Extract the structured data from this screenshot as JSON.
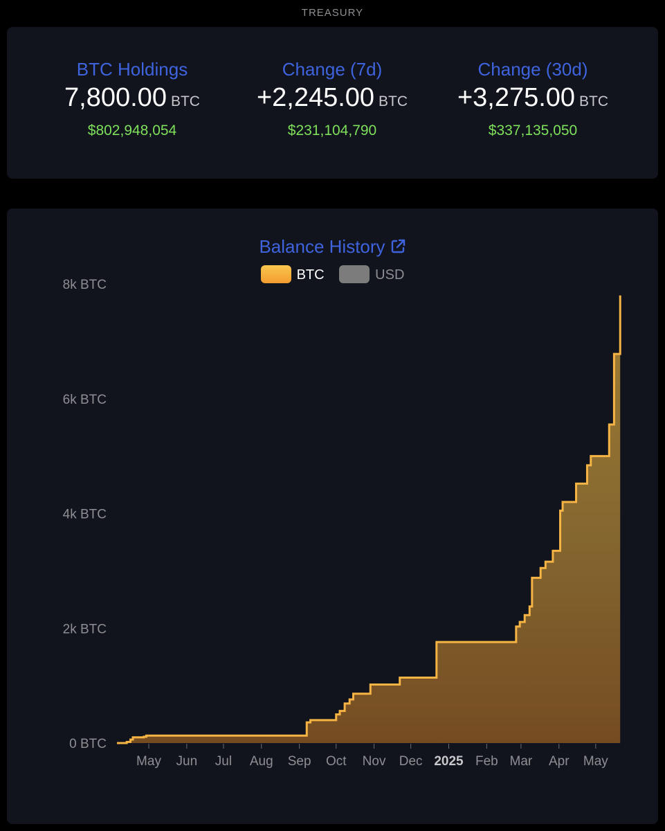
{
  "header": {
    "title": "TREASURY"
  },
  "stats": [
    {
      "title": "BTC Holdings",
      "value": "7,800.00",
      "unit": "BTC",
      "usd": "$802,948,054"
    },
    {
      "title": "Change (7d)",
      "value": "+2,245.00",
      "unit": "BTC",
      "usd": "$231,104,790"
    },
    {
      "title": "Change (30d)",
      "value": "+3,275.00",
      "unit": "BTC",
      "usd": "$337,135,050"
    }
  ],
  "chart": {
    "title": "Balance History",
    "link_icon": "external-link-icon",
    "legend": [
      {
        "label": "BTC",
        "color": "#f6b445",
        "active": true
      },
      {
        "label": "USD",
        "color": "#7c7c7c",
        "active": false
      }
    ]
  },
  "chart_data": {
    "type": "area",
    "title": "Balance History",
    "xlabel": "",
    "ylabel": "",
    "y_unit": "BTC",
    "ylim": [
      0,
      8000
    ],
    "y_ticks": [
      {
        "value": 0,
        "label": "0 BTC"
      },
      {
        "value": 2000,
        "label": "2k BTC"
      },
      {
        "value": 4000,
        "label": "4k BTC"
      },
      {
        "value": 6000,
        "label": "6k BTC"
      },
      {
        "value": 8000,
        "label": "8k BTC"
      }
    ],
    "x_range": [
      "2024-04-05",
      "2025-05-22"
    ],
    "x_ticks": [
      {
        "date": "2024-05-01",
        "label": "May",
        "bold": false
      },
      {
        "date": "2024-06-01",
        "label": "Jun",
        "bold": false
      },
      {
        "date": "2024-07-01",
        "label": "Jul",
        "bold": false
      },
      {
        "date": "2024-08-01",
        "label": "Aug",
        "bold": false
      },
      {
        "date": "2024-09-01",
        "label": "Sep",
        "bold": false
      },
      {
        "date": "2024-10-01",
        "label": "Oct",
        "bold": false
      },
      {
        "date": "2024-11-01",
        "label": "Nov",
        "bold": false
      },
      {
        "date": "2024-12-01",
        "label": "Dec",
        "bold": false
      },
      {
        "date": "2025-01-01",
        "label": "2025",
        "bold": true
      },
      {
        "date": "2025-02-01",
        "label": "Feb",
        "bold": false
      },
      {
        "date": "2025-03-01",
        "label": "Mar",
        "bold": false
      },
      {
        "date": "2025-04-01",
        "label": "Apr",
        "bold": false
      },
      {
        "date": "2025-05-01",
        "label": "May",
        "bold": false
      }
    ],
    "grid": false,
    "legend_position": "top-center",
    "series": [
      {
        "name": "BTC",
        "color": "#f6b445",
        "step": true,
        "points": [
          {
            "x": "2024-04-05",
            "y": 0
          },
          {
            "x": "2024-04-13",
            "y": 20
          },
          {
            "x": "2024-04-16",
            "y": 60
          },
          {
            "x": "2024-04-18",
            "y": 100
          },
          {
            "x": "2024-04-27",
            "y": 110
          },
          {
            "x": "2024-04-29",
            "y": 130
          },
          {
            "x": "2024-09-07",
            "y": 360
          },
          {
            "x": "2024-09-10",
            "y": 400
          },
          {
            "x": "2024-10-01",
            "y": 500
          },
          {
            "x": "2024-10-04",
            "y": 560
          },
          {
            "x": "2024-10-08",
            "y": 690
          },
          {
            "x": "2024-10-12",
            "y": 760
          },
          {
            "x": "2024-10-15",
            "y": 860
          },
          {
            "x": "2024-10-29",
            "y": 1020
          },
          {
            "x": "2024-11-22",
            "y": 1140
          },
          {
            "x": "2024-12-22",
            "y": 1760
          },
          {
            "x": "2025-02-25",
            "y": 2030
          },
          {
            "x": "2025-02-28",
            "y": 2110
          },
          {
            "x": "2025-03-04",
            "y": 2230
          },
          {
            "x": "2025-03-08",
            "y": 2380
          },
          {
            "x": "2025-03-10",
            "y": 2880
          },
          {
            "x": "2025-03-17",
            "y": 3050
          },
          {
            "x": "2025-03-21",
            "y": 3160
          },
          {
            "x": "2025-03-27",
            "y": 3350
          },
          {
            "x": "2025-04-02",
            "y": 4050
          },
          {
            "x": "2025-04-04",
            "y": 4200
          },
          {
            "x": "2025-04-15",
            "y": 4520
          },
          {
            "x": "2025-04-24",
            "y": 4840
          },
          {
            "x": "2025-04-27",
            "y": 5000
          },
          {
            "x": "2025-05-12",
            "y": 5550
          },
          {
            "x": "2025-05-16",
            "y": 6780
          },
          {
            "x": "2025-05-21",
            "y": 7800
          }
        ]
      }
    ]
  }
}
